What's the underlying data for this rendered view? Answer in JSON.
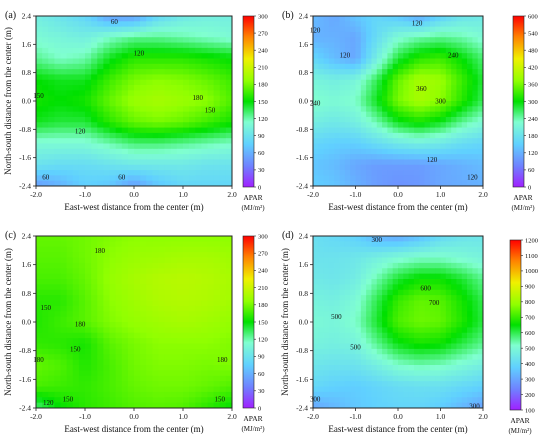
{
  "panels": [
    {
      "label": "(a)",
      "xlabel": "East-west distance from the center (m)",
      "ylabel": "North-south distance from the center (m)",
      "xticks": [
        "-2.0",
        "-1.0",
        "0.0",
        "1.0",
        "2.0"
      ],
      "yticks": [
        "2.4",
        "1.6",
        "0.8",
        "0.0",
        "-0.8",
        "-1.6",
        "-2.4"
      ],
      "colorbar": {
        "title": "APAR",
        "unit": "(MJ/m²)",
        "ticks": [
          "300",
          "270",
          "240",
          "210",
          "180",
          "150",
          "120",
          "90",
          "60",
          "30",
          "0"
        ]
      },
      "contour_labels": [
        {
          "text": "60",
          "x": -0.4,
          "y": 2.25
        },
        {
          "text": "120",
          "x": 0.1,
          "y": 1.35
        },
        {
          "text": "150",
          "x": -1.95,
          "y": 0.15
        },
        {
          "text": "180",
          "x": 1.3,
          "y": 0.1
        },
        {
          "text": "150",
          "x": 1.55,
          "y": -0.25
        },
        {
          "text": "120",
          "x": -1.1,
          "y": -0.85
        },
        {
          "text": "60",
          "x": -1.8,
          "y": -2.15
        },
        {
          "text": "60",
          "x": -0.25,
          "y": -2.15
        }
      ]
    },
    {
      "label": "(b)",
      "xlabel": "East-west distance from the center (m)",
      "ylabel": "",
      "xticks": [
        "-2.0",
        "-1.0",
        "0.0",
        "1.0",
        "2.0"
      ],
      "yticks": [
        "2.4",
        "1.6",
        "0.8",
        "0.0",
        "-0.8",
        "-1.6",
        "-2.4"
      ],
      "colorbar": {
        "title": "APAR",
        "unit": "(MJ/m²)",
        "ticks": [
          "600",
          "540",
          "480",
          "420",
          "360",
          "300",
          "240",
          "180",
          "120",
          "60",
          "0"
        ]
      },
      "contour_labels": [
        {
          "text": "120",
          "x": 0.45,
          "y": 2.2
        },
        {
          "text": "120",
          "x": -1.95,
          "y": 2.0
        },
        {
          "text": "120",
          "x": -1.25,
          "y": 1.3
        },
        {
          "text": "240",
          "x": 1.3,
          "y": 1.3
        },
        {
          "text": "360",
          "x": 0.55,
          "y": 0.35
        },
        {
          "text": "300",
          "x": 1.0,
          "y": 0.0
        },
        {
          "text": "240",
          "x": -1.95,
          "y": -0.05
        },
        {
          "text": "120",
          "x": 0.8,
          "y": -1.65
        },
        {
          "text": "120",
          "x": 1.75,
          "y": -2.15
        }
      ]
    },
    {
      "label": "(c)",
      "xlabel": "East-west distance from the center (m)",
      "ylabel": "North-south distance from the center (m)",
      "xticks": [
        "-2.0",
        "-1.0",
        "0.0",
        "1.0",
        "2.0"
      ],
      "yticks": [
        "2.4",
        "1.6",
        "0.8",
        "0.0",
        "-0.8",
        "-1.6",
        "-2.4"
      ],
      "colorbar": {
        "title": "APAR",
        "unit": "(MJ/m²)",
        "ticks": [
          "300",
          "270",
          "240",
          "210",
          "180",
          "150",
          "120",
          "90",
          "60",
          "30",
          "0"
        ]
      },
      "contour_labels": [
        {
          "text": "180",
          "x": -0.7,
          "y": 2.0
        },
        {
          "text": "150",
          "x": -1.8,
          "y": 0.4
        },
        {
          "text": "180",
          "x": -1.1,
          "y": -0.05
        },
        {
          "text": "150",
          "x": -1.2,
          "y": -0.75
        },
        {
          "text": "180",
          "x": -1.95,
          "y": -1.05
        },
        {
          "text": "180",
          "x": 1.8,
          "y": -1.05
        },
        {
          "text": "120",
          "x": -1.75,
          "y": -2.25
        },
        {
          "text": "150",
          "x": -1.35,
          "y": -2.15
        },
        {
          "text": "150",
          "x": 1.75,
          "y": -2.15
        }
      ]
    },
    {
      "label": "(d)",
      "xlabel": "East-west distance from the center (m)",
      "ylabel": "North-south distance from the center (m)",
      "xticks": [
        "-2.0",
        "-1.0",
        "0.0",
        "1.0",
        "2.0"
      ],
      "yticks": [
        "2.4",
        "1.6",
        "0.8",
        "0.0",
        "-0.8",
        "-1.6",
        "-2.4"
      ],
      "colorbar": {
        "title": "APAR",
        "unit": "(MJ/m²)",
        "ticks": [
          "1200",
          "1100",
          "1000",
          "900",
          "800",
          "700",
          "600",
          "500",
          "400",
          "300",
          "200",
          "100"
        ]
      },
      "contour_labels": [
        {
          "text": "300",
          "x": -0.5,
          "y": 2.3
        },
        {
          "text": "600",
          "x": 0.65,
          "y": 0.95
        },
        {
          "text": "700",
          "x": 0.85,
          "y": 0.55
        },
        {
          "text": "500",
          "x": -1.45,
          "y": 0.15
        },
        {
          "text": "500",
          "x": -1.0,
          "y": -0.7
        },
        {
          "text": "300",
          "x": -1.95,
          "y": -2.15
        },
        {
          "text": "300",
          "x": 1.8,
          "y": -2.35
        }
      ]
    }
  ],
  "chart_data": [
    {
      "type": "heatmap",
      "title": "(a)",
      "xlabel": "East-west distance from the center (m)",
      "ylabel": "North-south distance from the center (m)",
      "xlim": [
        -2.0,
        2.0
      ],
      "ylim": [
        -2.4,
        2.4
      ],
      "colorbar_label": "APAR (MJ/m²)",
      "colorbar_range": [
        0,
        300
      ],
      "x": [
        -2.0,
        -1.5,
        -1.0,
        -0.5,
        0.0,
        0.5,
        1.0,
        1.5,
        2.0
      ],
      "y": [
        2.4,
        1.8,
        1.2,
        0.6,
        0.0,
        -0.6,
        -1.2,
        -1.8,
        -2.4
      ],
      "z": [
        [
          100,
          90,
          80,
          50,
          50,
          80,
          95,
          100,
          100
        ],
        [
          110,
          105,
          100,
          115,
          125,
          125,
          120,
          115,
          110
        ],
        [
          125,
          115,
          120,
          145,
          160,
          160,
          160,
          155,
          150
        ],
        [
          150,
          145,
          145,
          165,
          180,
          185,
          182,
          175,
          165
        ],
        [
          155,
          150,
          155,
          175,
          190,
          195,
          190,
          185,
          170
        ],
        [
          145,
          140,
          140,
          160,
          175,
          180,
          175,
          165,
          155
        ],
        [
          110,
          110,
          110,
          120,
          130,
          130,
          125,
          120,
          115
        ],
        [
          90,
          85,
          85,
          90,
          95,
          95,
          95,
          90,
          90
        ],
        [
          50,
          60,
          75,
          70,
          50,
          70,
          80,
          80,
          80
        ]
      ]
    },
    {
      "type": "heatmap",
      "title": "(b)",
      "xlabel": "East-west distance from the center (m)",
      "ylabel": "",
      "xlim": [
        -2.0,
        2.0
      ],
      "ylim": [
        -2.4,
        2.4
      ],
      "colorbar_label": "APAR (MJ/m²)",
      "colorbar_range": [
        0,
        600
      ],
      "x": [
        -2.0,
        -1.5,
        -1.0,
        -0.5,
        0.0,
        0.5,
        1.0,
        1.5,
        2.0
      ],
      "y": [
        2.4,
        1.8,
        1.2,
        0.6,
        0.0,
        -0.6,
        -1.2,
        -1.8,
        -2.4
      ],
      "z": [
        [
          130,
          110,
          140,
          160,
          140,
          110,
          150,
          180,
          190
        ],
        [
          120,
          120,
          110,
          170,
          220,
          240,
          250,
          240,
          220
        ],
        [
          160,
          130,
          110,
          200,
          280,
          320,
          330,
          300,
          260
        ],
        [
          210,
          200,
          210,
          270,
          350,
          390,
          380,
          330,
          280
        ],
        [
          230,
          220,
          230,
          290,
          360,
          390,
          370,
          320,
          270
        ],
        [
          200,
          190,
          200,
          240,
          290,
          310,
          290,
          250,
          220
        ],
        [
          160,
          150,
          150,
          170,
          190,
          200,
          190,
          170,
          160
        ],
        [
          140,
          130,
          110,
          100,
          100,
          100,
          110,
          120,
          130
        ],
        [
          150,
          140,
          120,
          100,
          90,
          95,
          110,
          115,
          120
        ]
      ]
    },
    {
      "type": "heatmap",
      "title": "(c)",
      "xlabel": "East-west distance from the center (m)",
      "ylabel": "North-south distance from the center (m)",
      "xlim": [
        -2.0,
        2.0
      ],
      "ylim": [
        -2.4,
        2.4
      ],
      "colorbar_label": "APAR (MJ/m²)",
      "colorbar_range": [
        0,
        300
      ],
      "x": [
        -2.0,
        -1.5,
        -1.0,
        -0.5,
        0.0,
        0.5,
        1.0,
        1.5,
        2.0
      ],
      "y": [
        2.4,
        1.8,
        1.2,
        0.6,
        0.0,
        -0.6,
        -1.2,
        -1.8,
        -2.4
      ],
      "z": [
        [
          175,
          175,
          178,
          182,
          185,
          185,
          185,
          185,
          185
        ],
        [
          172,
          172,
          178,
          185,
          190,
          192,
          195,
          195,
          192
        ],
        [
          168,
          168,
          175,
          188,
          195,
          200,
          202,
          200,
          196
        ],
        [
          160,
          160,
          172,
          185,
          192,
          198,
          200,
          198,
          194
        ],
        [
          158,
          165,
          172,
          182,
          188,
          192,
          195,
          192,
          188
        ],
        [
          162,
          160,
          155,
          172,
          180,
          185,
          185,
          185,
          182
        ],
        [
          175,
          170,
          158,
          168,
          178,
          182,
          182,
          180,
          182
        ],
        [
          168,
          165,
          162,
          168,
          175,
          178,
          178,
          175,
          170
        ],
        [
          130,
          150,
          160,
          165,
          170,
          172,
          170,
          160,
          150
        ]
      ]
    },
    {
      "type": "heatmap",
      "title": "(d)",
      "xlabel": "East-west distance from the center (m)",
      "ylabel": "North-south distance from the center (m)",
      "xlim": [
        -2.0,
        2.0
      ],
      "ylim": [
        -2.4,
        2.4
      ],
      "colorbar_label": "APAR (MJ/m²)",
      "colorbar_range": [
        100,
        1200
      ],
      "x": [
        -2.0,
        -1.5,
        -1.0,
        -0.5,
        0.0,
        0.5,
        1.0,
        1.5,
        2.0
      ],
      "y": [
        2.4,
        1.8,
        1.2,
        0.6,
        0.0,
        -0.6,
        -1.2,
        -1.8,
        -2.4
      ],
      "z": [
        [
          420,
          400,
          380,
          320,
          300,
          340,
          400,
          430,
          440
        ],
        [
          430,
          430,
          440,
          470,
          500,
          520,
          520,
          500,
          480
        ],
        [
          450,
          440,
          460,
          540,
          620,
          660,
          660,
          620,
          560
        ],
        [
          480,
          470,
          500,
          600,
          700,
          740,
          730,
          670,
          600
        ],
        [
          500,
          490,
          520,
          620,
          720,
          750,
          740,
          680,
          610
        ],
        [
          480,
          470,
          480,
          560,
          640,
          670,
          660,
          610,
          560
        ],
        [
          440,
          430,
          430,
          470,
          520,
          540,
          530,
          500,
          470
        ],
        [
          400,
          380,
          370,
          390,
          410,
          420,
          420,
          400,
          380
        ],
        [
          300,
          330,
          360,
          380,
          390,
          390,
          370,
          330,
          290
        ]
      ]
    }
  ]
}
